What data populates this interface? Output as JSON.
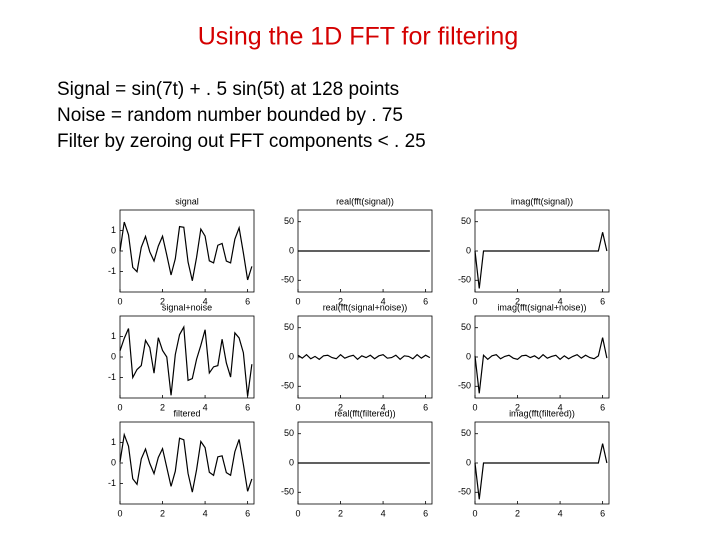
{
  "title": "Using the 1D FFT for filtering",
  "lines": [
    "Signal = sin(7t) + . 5 sin(5t) at 128 points",
    "Noise = random number bounded by . 75",
    "Filter by zeroing out FFT components < . 25"
  ],
  "chart_data": [
    {
      "type": "line",
      "title": "signal",
      "color": "#000000",
      "xlim": [
        0,
        6.3
      ],
      "xticks": [
        0,
        2,
        4,
        6
      ],
      "ylim": [
        -2,
        2
      ],
      "yticks": [
        1,
        0,
        -1
      ],
      "x": [
        0,
        0.2,
        0.4,
        0.6,
        0.8,
        1,
        1.2,
        1.4,
        1.6,
        1.8,
        2,
        2.2,
        2.4,
        2.6,
        2.8,
        3,
        3.2,
        3.4,
        3.6,
        3.8,
        4,
        4.2,
        4.4,
        4.6,
        4.8,
        5,
        5.2,
        5.4,
        5.6,
        5.8,
        6,
        6.2
      ],
      "values": [
        0,
        1.41,
        0.79,
        -0.8,
        -1.01,
        0.18,
        0.71,
        -0.04,
        -0.49,
        0.24,
        0.72,
        -0.2,
        -1.17,
        -0.38,
        1.19,
        1.16,
        -0.54,
        -1.45,
        -0.31,
        1.07,
        0.73,
        -0.48,
        -0.58,
        0.28,
        0.37,
        -0.49,
        -0.58,
        0.58,
        1.13,
        -0.09,
        -1.41,
        -0.75
      ]
    },
    {
      "type": "line",
      "title": "real(fft(signal))",
      "color": "#000000",
      "xlim": [
        0,
        6.3
      ],
      "xticks": [
        0,
        2,
        4,
        6
      ],
      "ylim": [
        -70,
        70
      ],
      "yticks": [
        50,
        0,
        -50
      ],
      "x": [
        0,
        0.2,
        0.4,
        0.6,
        0.8,
        1,
        1.2,
        1.4,
        1.6,
        1.8,
        2,
        2.2,
        2.4,
        2.6,
        2.8,
        3,
        3.2,
        3.4,
        3.6,
        3.8,
        4,
        4.2,
        4.4,
        4.6,
        4.8,
        5,
        5.2,
        5.4,
        5.6,
        5.8,
        6,
        6.2
      ],
      "values": [
        0,
        0,
        0,
        0,
        0,
        0,
        0,
        0,
        0,
        0,
        0,
        0,
        0,
        0,
        0,
        0,
        0,
        0,
        0,
        0,
        0,
        0,
        0,
        0,
        0,
        0,
        0,
        0,
        0,
        0,
        0,
        0
      ]
    },
    {
      "type": "line",
      "title": "imag(fft(signal))",
      "color": "#000000",
      "xlim": [
        0,
        6.3
      ],
      "xticks": [
        0,
        2,
        4,
        6
      ],
      "ylim": [
        -70,
        70
      ],
      "yticks": [
        50,
        0,
        -50
      ],
      "x": [
        0,
        0.2,
        0.4,
        0.6,
        0.8,
        1,
        1.2,
        1.4,
        1.6,
        1.8,
        2,
        2.2,
        2.4,
        2.6,
        2.8,
        3,
        3.2,
        3.4,
        3.6,
        3.8,
        4,
        4.2,
        4.4,
        4.6,
        4.8,
        5,
        5.2,
        5.4,
        5.6,
        5.8,
        6,
        6.2
      ],
      "values": [
        0,
        -64,
        0,
        0,
        0,
        0,
        0,
        0,
        0,
        0,
        0,
        0,
        0,
        0,
        0,
        0,
        0,
        0,
        0,
        0,
        0,
        0,
        0,
        0,
        0,
        0,
        0,
        0,
        0,
        0,
        32,
        0
      ]
    },
    {
      "type": "line",
      "title": "signal+noise",
      "color": "#000000",
      "xlim": [
        0,
        6.3
      ],
      "xticks": [
        0,
        2,
        4,
        6
      ],
      "ylim": [
        -2,
        2
      ],
      "yticks": [
        1,
        0,
        -1
      ],
      "x": [
        0,
        0.2,
        0.4,
        0.6,
        0.8,
        1,
        1.2,
        1.4,
        1.6,
        1.8,
        2,
        2.2,
        2.4,
        2.6,
        2.8,
        3,
        3.2,
        3.4,
        3.6,
        3.8,
        4,
        4.2,
        4.4,
        4.6,
        4.8,
        5,
        5.2,
        5.4,
        5.6,
        5.8,
        6,
        6.2
      ],
      "values": [
        0.3,
        0.91,
        1.39,
        -1.0,
        -0.61,
        -0.42,
        0.81,
        0.46,
        -0.79,
        0.94,
        0.32,
        0,
        -1.87,
        0.12,
        1.09,
        1.46,
        -1.14,
        -1.05,
        -0.11,
        0.57,
        1.33,
        -0.78,
        -0.48,
        -0.42,
        0.87,
        -0.29,
        -0.98,
        1.18,
        0.93,
        0.21,
        -1.91,
        -0.35
      ]
    },
    {
      "type": "line",
      "title": "real(fft(signal+noise))",
      "color": "#000000",
      "xlim": [
        0,
        6.3
      ],
      "xticks": [
        0,
        2,
        4,
        6
      ],
      "ylim": [
        -70,
        70
      ],
      "yticks": [
        50,
        0,
        -50
      ],
      "x": [
        0,
        0.2,
        0.4,
        0.6,
        0.8,
        1,
        1.2,
        1.4,
        1.6,
        1.8,
        2,
        2.2,
        2.4,
        2.6,
        2.8,
        3,
        3.2,
        3.4,
        3.6,
        3.8,
        4,
        4.2,
        4.4,
        4.6,
        4.8,
        5,
        5.2,
        5.4,
        5.6,
        5.8,
        6,
        6.2
      ],
      "values": [
        3,
        -2,
        4,
        -3,
        1,
        -4,
        2,
        3,
        -1,
        -3,
        4,
        -2,
        1,
        3,
        -4,
        2,
        -1,
        3,
        -3,
        2,
        4,
        -2,
        -1,
        3,
        -4,
        2,
        1,
        -3,
        4,
        -2,
        3,
        -1
      ]
    },
    {
      "type": "line",
      "title": "imag(fft(signal+noise))",
      "color": "#000000",
      "xlim": [
        0,
        6.3
      ],
      "xticks": [
        0,
        2,
        4,
        6
      ],
      "ylim": [
        -70,
        70
      ],
      "yticks": [
        50,
        0,
        -50
      ],
      "x": [
        0,
        0.2,
        0.4,
        0.6,
        0.8,
        1,
        1.2,
        1.4,
        1.6,
        1.8,
        2,
        2.2,
        2.4,
        2.6,
        2.8,
        3,
        3.2,
        3.4,
        3.6,
        3.8,
        4,
        4.2,
        4.4,
        4.6,
        4.8,
        5,
        5.2,
        5.4,
        5.6,
        5.8,
        6,
        6.2
      ],
      "values": [
        2,
        -62,
        3,
        -4,
        2,
        4,
        -3,
        1,
        3,
        -2,
        -4,
        2,
        3,
        -1,
        2,
        -3,
        4,
        -2,
        1,
        3,
        -4,
        2,
        -3,
        1,
        4,
        -2,
        3,
        -1,
        -3,
        2,
        33,
        -2
      ]
    },
    {
      "type": "line",
      "title": "filtered",
      "color": "#000000",
      "xlim": [
        0,
        6.3
      ],
      "xticks": [
        0,
        2,
        4,
        6
      ],
      "ylim": [
        -2,
        2
      ],
      "yticks": [
        1,
        0,
        -1
      ],
      "x": [
        0,
        0.2,
        0.4,
        0.6,
        0.8,
        1,
        1.2,
        1.4,
        1.6,
        1.8,
        2,
        2.2,
        2.4,
        2.6,
        2.8,
        3,
        3.2,
        3.4,
        3.6,
        3.8,
        4,
        4.2,
        4.4,
        4.6,
        4.8,
        5,
        5.2,
        5.4,
        5.6,
        5.8,
        6,
        6.2
      ],
      "values": [
        0.05,
        1.38,
        0.82,
        -0.77,
        -1.04,
        0.2,
        0.68,
        -0.02,
        -0.52,
        0.27,
        0.7,
        -0.22,
        -1.14,
        -0.4,
        1.21,
        1.13,
        -0.51,
        -1.42,
        -0.33,
        1.05,
        0.75,
        -0.45,
        -0.6,
        0.3,
        0.35,
        -0.47,
        -0.6,
        0.55,
        1.15,
        -0.07,
        -1.38,
        -0.78
      ]
    },
    {
      "type": "line",
      "title": "real(fft(filtered))",
      "color": "#000000",
      "xlim": [
        0,
        6.3
      ],
      "xticks": [
        0,
        2,
        4,
        6
      ],
      "ylim": [
        -70,
        70
      ],
      "yticks": [
        50,
        0,
        -50
      ],
      "x": [
        0,
        0.2,
        0.4,
        0.6,
        0.8,
        1,
        1.2,
        1.4,
        1.6,
        1.8,
        2,
        2.2,
        2.4,
        2.6,
        2.8,
        3,
        3.2,
        3.4,
        3.6,
        3.8,
        4,
        4.2,
        4.4,
        4.6,
        4.8,
        5,
        5.2,
        5.4,
        5.6,
        5.8,
        6,
        6.2
      ],
      "values": [
        0,
        0,
        0,
        0,
        0,
        0,
        0,
        0,
        0,
        0,
        0,
        0,
        0,
        0,
        0,
        0,
        0,
        0,
        0,
        0,
        0,
        0,
        0,
        0,
        0,
        0,
        0,
        0,
        0,
        0,
        0,
        0
      ]
    },
    {
      "type": "line",
      "title": "imag(fft(filtered))",
      "color": "#000000",
      "xlim": [
        0,
        6.3
      ],
      "xticks": [
        0,
        2,
        4,
        6
      ],
      "ylim": [
        -70,
        70
      ],
      "yticks": [
        50,
        0,
        -50
      ],
      "x": [
        0,
        0.2,
        0.4,
        0.6,
        0.8,
        1,
        1.2,
        1.4,
        1.6,
        1.8,
        2,
        2.2,
        2.4,
        2.6,
        2.8,
        3,
        3.2,
        3.4,
        3.6,
        3.8,
        4,
        4.2,
        4.4,
        4.6,
        4.8,
        5,
        5.2,
        5.4,
        5.6,
        5.8,
        6,
        6.2
      ],
      "values": [
        0,
        -62,
        0,
        0,
        0,
        0,
        0,
        0,
        0,
        0,
        0,
        0,
        0,
        0,
        0,
        0,
        0,
        0,
        0,
        0,
        0,
        0,
        0,
        0,
        0,
        0,
        0,
        0,
        0,
        0,
        33,
        0
      ]
    }
  ]
}
